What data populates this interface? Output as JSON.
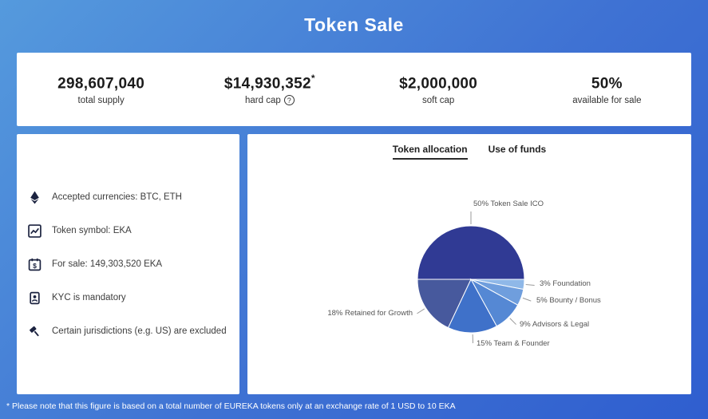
{
  "page": {
    "title": "Token Sale",
    "footnote": "* Please note that this figure is based on a total number of EUREKA tokens only at an exchange rate of 1 USD to 10 EKA"
  },
  "icons": {
    "help": "?"
  },
  "stats": [
    {
      "value": "298,607,040",
      "label": "total supply"
    },
    {
      "value": "$14,930,352",
      "superscript": "*",
      "label": "hard cap"
    },
    {
      "value": "$2,000,000",
      "label": "soft cap"
    },
    {
      "value": "50%",
      "label": "available for sale"
    }
  ],
  "details": {
    "items": [
      {
        "icon": "ethereum-icon",
        "text": "Accepted currencies: BTC, ETH"
      },
      {
        "icon": "chart-icon",
        "text": "Token symbol: EKA"
      },
      {
        "icon": "calendar-dollar-icon",
        "text": "For sale: 149,303,520 EKA"
      },
      {
        "icon": "id-badge-icon",
        "text": "KYC is mandatory"
      },
      {
        "icon": "gavel-icon",
        "text": "Certain jurisdictions (e.g. US) are excluded"
      }
    ]
  },
  "tabs": [
    {
      "label": "Token allocation",
      "active": true
    },
    {
      "label": "Use of funds",
      "active": false
    }
  ],
  "chart_data": {
    "type": "pie",
    "title": "Token allocation",
    "start_angle_deg": 180,
    "direction": "clockwise",
    "segments": [
      {
        "label": "Token Sale ICO",
        "value": 50,
        "display": "50% Token Sale ICO",
        "color": "#303a94"
      },
      {
        "label": "Foundation",
        "value": 3,
        "display": "3% Foundation",
        "color": "#8fb8e8"
      },
      {
        "label": "Bounty / Bonus",
        "value": 5,
        "display": "5% Bounty / Bonus",
        "color": "#6f9edd"
      },
      {
        "label": "Advisors & Legal",
        "value": 9,
        "display": "9% Advisors & Legal",
        "color": "#5588d4"
      },
      {
        "label": "Team & Founder",
        "value": 15,
        "display": "15% Team & Founder",
        "color": "#3f71c9"
      },
      {
        "label": "Retained for Growth",
        "value": 18,
        "display": "18% Retained for Growth",
        "color": "#47599d"
      }
    ]
  }
}
